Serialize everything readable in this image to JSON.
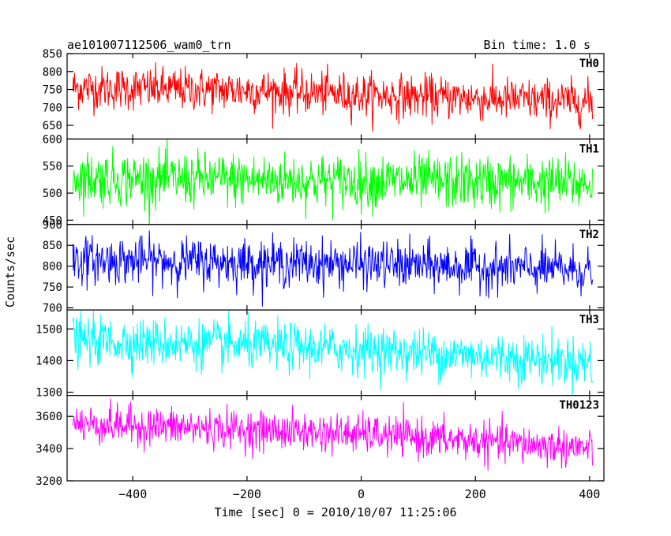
{
  "header": {
    "title": "ae101007112506_wam0_trn",
    "bin_time": "Bin time: 1.0 s"
  },
  "chart_data": {
    "type": "line",
    "title": "ae101007112506_wam0_trn",
    "subtitle": "Bin time: 1.0 s",
    "xlabel": "Time [sec] 0 = 2010/10/07 11:25:06",
    "ylabel": "Counts/sec",
    "xlim": [
      -515,
      425
    ],
    "x_range": [
      -505,
      405
    ],
    "x_step": 1,
    "xticks": [
      -400,
      -200,
      0,
      200,
      400
    ],
    "xtick_labels": [
      "−400",
      "−200",
      "0",
      "200",
      "400"
    ],
    "grid": false,
    "legend": "none",
    "panels": [
      {
        "name": "TH0",
        "color": "#ff0000",
        "ylim": [
          612,
          850
        ],
        "yticks": [
          650,
          700,
          750,
          800,
          850
        ],
        "ytick_labels": [
          "650",
          "700",
          "750",
          "800",
          "850"
        ],
        "trend": [
          [
            -505,
            755
          ],
          [
            -200,
            748
          ],
          [
            0,
            735
          ],
          [
            405,
            715
          ]
        ],
        "noise_sd": 30
      },
      {
        "name": "TH1",
        "color": "#00ff00",
        "ylim": [
          442,
          600
        ],
        "yticks": [
          450,
          500,
          550,
          600
        ],
        "ytick_labels": [
          "450",
          "500",
          "550",
          "600"
        ],
        "trend": [
          [
            -505,
            528
          ],
          [
            0,
            522
          ],
          [
            405,
            518
          ]
        ],
        "noise_sd": 25
      },
      {
        "name": "TH2",
        "color": "#0000ff",
        "ylim": [
          695,
          900
        ],
        "yticks": [
          700,
          750,
          800,
          850,
          900
        ],
        "ytick_labels": [
          "700",
          "750",
          "800",
          "850",
          "900"
        ],
        "trend": [
          [
            -505,
            815
          ],
          [
            0,
            805
          ],
          [
            405,
            790
          ]
        ],
        "noise_sd": 28
      },
      {
        "name": "TH3",
        "color": "#00ffff",
        "ylim": [
          1290,
          1560
        ],
        "yticks": [
          1300,
          1400,
          1500
        ],
        "ytick_labels": [
          "1300",
          "1400",
          "1500"
        ],
        "trend": [
          [
            -505,
            1465
          ],
          [
            0,
            1435
          ],
          [
            405,
            1395
          ]
        ],
        "noise_sd": 38
      },
      {
        "name": "TH0123",
        "color": "#ff00ff",
        "ylim": [
          3200,
          3730
        ],
        "yticks": [
          3200,
          3400,
          3600
        ],
        "ytick_labels": [
          "3200",
          "3400",
          "3600"
        ],
        "trend": [
          [
            -505,
            3555
          ],
          [
            0,
            3490
          ],
          [
            405,
            3400
          ]
        ],
        "noise_sd": 60
      }
    ]
  }
}
